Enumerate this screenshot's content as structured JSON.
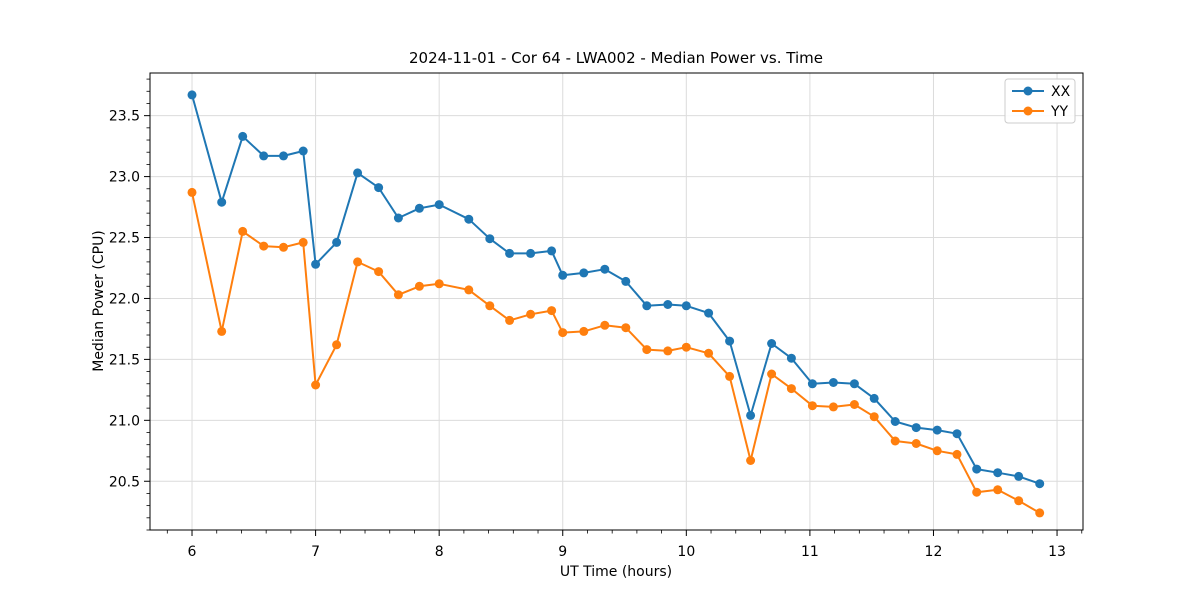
{
  "figure": {
    "title": "2024-11-01 - Cor 64 - LWA002 - Median Power vs. Time"
  },
  "chart_data": {
    "type": "line",
    "title": "2024-11-01 - Cor 64 - LWA002 - Median Power vs. Time",
    "xlabel": "UT Time (hours)",
    "ylabel": "Median Power (CPU)",
    "xlim": [
      5.66,
      13.21
    ],
    "ylim": [
      20.1,
      23.85
    ],
    "xticks": [
      6,
      7,
      8,
      9,
      10,
      11,
      12,
      13
    ],
    "yticks": [
      20.5,
      21.0,
      21.5,
      22.0,
      22.5,
      23.0,
      23.5
    ],
    "x_minor_step": 0.2,
    "y_minor_step": 0.1,
    "grid": true,
    "grid_color": "#dcdcdc",
    "spine_color": "#000000",
    "legend_position": "upper right",
    "legend_border_color": "#cccccc",
    "x": [
      6.0,
      6.24,
      6.41,
      6.58,
      6.74,
      6.9,
      7.0,
      7.17,
      7.34,
      7.51,
      7.67,
      7.84,
      8.0,
      8.24,
      8.41,
      8.57,
      8.74,
      8.91,
      9.0,
      9.17,
      9.34,
      9.51,
      9.68,
      9.85,
      10.0,
      10.18,
      10.35,
      10.52,
      10.69,
      10.85,
      11.02,
      11.19,
      11.36,
      11.52,
      11.69,
      11.86,
      12.03,
      12.19,
      12.35,
      12.52,
      12.69,
      12.86
    ],
    "series": [
      {
        "name": "XX",
        "color": "#1f77b4",
        "marker": "circle",
        "values": [
          23.67,
          22.79,
          23.33,
          23.17,
          23.17,
          23.21,
          22.28,
          22.46,
          23.03,
          22.91,
          22.66,
          22.74,
          22.77,
          22.65,
          22.49,
          22.37,
          22.37,
          22.39,
          22.19,
          22.21,
          22.24,
          22.14,
          21.94,
          21.95,
          21.94,
          21.88,
          21.65,
          21.04,
          21.63,
          21.51,
          21.3,
          21.31,
          21.3,
          21.18,
          20.99,
          20.94,
          20.92,
          20.89,
          20.6,
          20.57,
          20.54,
          20.48
        ]
      },
      {
        "name": "YY",
        "color": "#ff7f0e",
        "marker": "circle",
        "values": [
          22.87,
          21.73,
          22.55,
          22.43,
          22.42,
          22.46,
          21.29,
          21.62,
          22.3,
          22.22,
          22.03,
          22.1,
          22.12,
          22.07,
          21.94,
          21.82,
          21.87,
          21.9,
          21.72,
          21.73,
          21.78,
          21.76,
          21.58,
          21.57,
          21.6,
          21.55,
          21.36,
          20.67,
          21.38,
          21.26,
          21.12,
          21.11,
          21.13,
          21.03,
          20.83,
          20.81,
          20.75,
          20.72,
          20.41,
          20.43,
          20.34,
          20.24
        ]
      }
    ]
  }
}
